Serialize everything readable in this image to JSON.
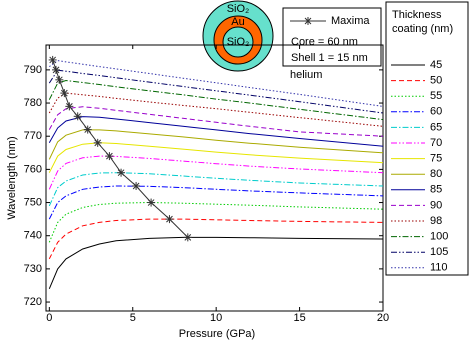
{
  "chart_data": {
    "type": "line",
    "x_label": "Pressure (GPa)",
    "y_label": "Wavelength (nm)",
    "x": [
      0,
      0.5,
      1,
      2,
      3,
      4,
      6,
      8,
      10,
      12,
      15,
      20
    ],
    "xlim": [
      -0.2,
      20
    ],
    "xticks": [
      0,
      5,
      10,
      15,
      20
    ],
    "ylim": [
      717.3,
      797.5
    ],
    "yticks": [
      720,
      730,
      740,
      750,
      760,
      770,
      780,
      790
    ],
    "legend_title": [
      "Thickness",
      "coating (nm)"
    ],
    "series": [
      {
        "name": "45",
        "color": "#000000",
        "dash": "solid",
        "values": [
          724,
          730,
          733,
          736,
          737.5,
          738.5,
          739.2,
          739.5,
          739.5,
          739.4,
          739.2,
          739
        ]
      },
      {
        "name": "50",
        "color": "#ff0000",
        "dash": "dashed",
        "values": [
          733,
          738,
          740.5,
          743,
          744,
          744.6,
          745,
          745,
          744.8,
          744.6,
          744.3,
          744
        ]
      },
      {
        "name": "55",
        "color": "#00cc00",
        "dash": "dotted",
        "values": [
          738,
          744,
          746.5,
          748.5,
          749.4,
          749.8,
          750,
          749.8,
          749.5,
          749.2,
          748.7,
          748
        ]
      },
      {
        "name": "60",
        "color": "#0000ff",
        "dash": "dashdot",
        "values": [
          745,
          750,
          752,
          754,
          754.7,
          755,
          754.9,
          754.5,
          754,
          753.5,
          752.9,
          752
        ]
      },
      {
        "name": "65",
        "color": "#00cccc",
        "dash": "dashdot",
        "values": [
          749,
          754.5,
          756.5,
          758.3,
          758.9,
          759,
          758.7,
          758,
          757.3,
          756.7,
          755.9,
          755
        ]
      },
      {
        "name": "70",
        "color": "#ff00ff",
        "dash": "dashdotdot",
        "values": [
          754,
          759.5,
          761.8,
          763.5,
          764,
          763.9,
          763.3,
          762.5,
          761.7,
          761,
          760.1,
          759
        ]
      },
      {
        "name": "75",
        "color": "#e6e600",
        "dash": "solid",
        "values": [
          759,
          764,
          766,
          767.6,
          768,
          767.8,
          767,
          766.1,
          765.2,
          764.4,
          763.4,
          762
        ]
      },
      {
        "name": "80",
        "color": "#aaaa00",
        "dash": "solid",
        "values": [
          763,
          768.3,
          770.3,
          771.9,
          771.9,
          771.6,
          770.7,
          769.8,
          768.8,
          767.9,
          766.7,
          765
        ]
      },
      {
        "name": "85",
        "color": "#000099",
        "dash": "solid",
        "values": [
          768,
          772.5,
          774.6,
          775.9,
          775.7,
          775.2,
          774.1,
          773,
          771.9,
          770.8,
          769.3,
          767
        ]
      },
      {
        "name": "90",
        "color": "#9900cc",
        "dash": "dashed",
        "values": [
          772,
          776.5,
          778.3,
          778.9,
          778.4,
          777.8,
          776.6,
          775.4,
          774.2,
          773,
          771.3,
          770
        ]
      },
      {
        "name": "98",
        "color": "#990000",
        "dash": "dotted",
        "values": [
          777,
          781.5,
          783,
          782.5,
          782,
          781.4,
          780.3,
          779.3,
          778.3,
          777.2,
          775.6,
          773
        ]
      },
      {
        "name": "100",
        "color": "#006600",
        "dash": "dashdot",
        "values": [
          781,
          786,
          786.8,
          786.2,
          785.6,
          784.9,
          783.7,
          782.5,
          781.2,
          780,
          778.1,
          775
        ]
      },
      {
        "name": "105",
        "color": "#000066",
        "dash": "dashdotdot",
        "values": [
          786,
          789.9,
          789.6,
          788.9,
          788.3,
          787.6,
          786.3,
          785,
          783.7,
          782.4,
          780.4,
          777
        ]
      },
      {
        "name": "110",
        "color": "#3333aa",
        "dash": "dotted",
        "values": [
          791,
          792.8,
          792.4,
          791.7,
          791,
          790.3,
          788.9,
          787.5,
          786.1,
          784.7,
          782.6,
          779
        ]
      }
    ],
    "maxima": {
      "name": "Maxima",
      "color": "#333333",
      "x": [
        8.3,
        7.2,
        6.1,
        5.2,
        4.3,
        3.6,
        2.9,
        2.3,
        1.7,
        1.2,
        0.9,
        0.6,
        0.4,
        0.2
      ],
      "values": [
        739.5,
        745,
        750,
        755,
        759,
        764,
        768,
        772,
        776,
        779,
        783,
        787,
        790,
        793
      ]
    },
    "notes": [
      "Core = 60 nm",
      "Shell 1 = 15 nm"
    ],
    "sphere_labels": {
      "outer": "SiO₂",
      "shell": "Au",
      "core": "SiO₂",
      "medium": "helium"
    }
  }
}
